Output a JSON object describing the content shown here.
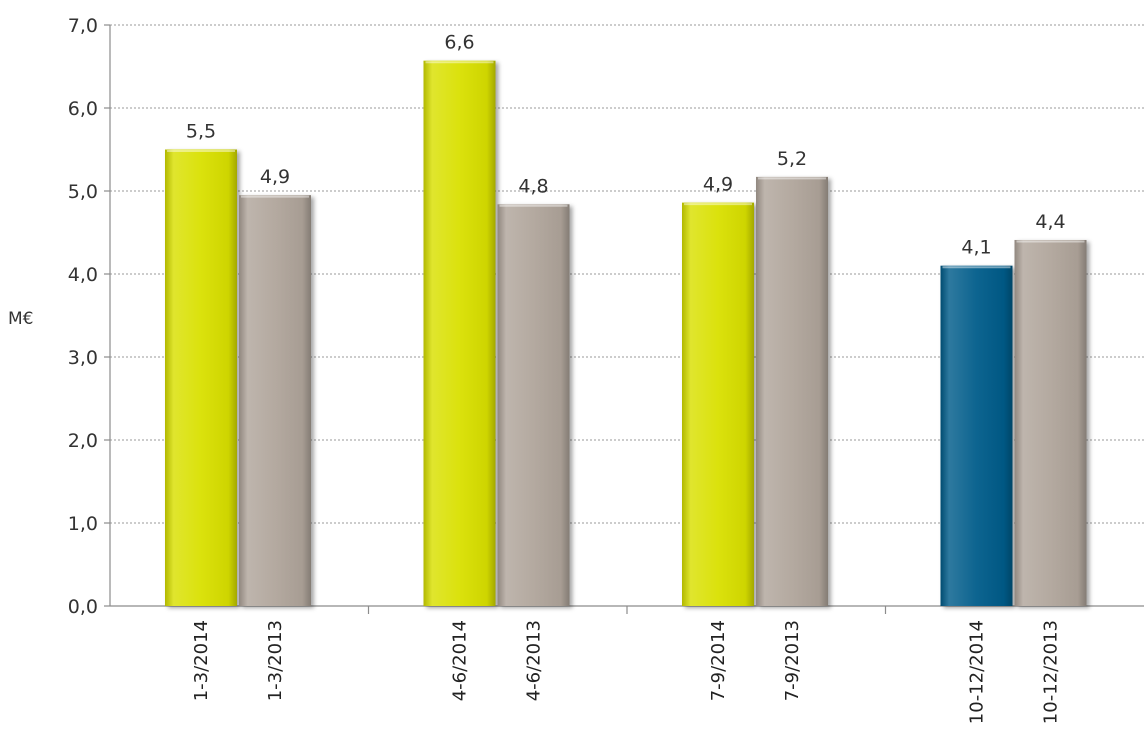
{
  "chart_data": {
    "type": "bar",
    "title": "",
    "xlabel": "",
    "ylabel": "M€",
    "ylim": [
      0,
      7
    ],
    "yticks": [
      "0,0",
      "1,0",
      "2,0",
      "3,0",
      "4,0",
      "5,0",
      "6,0",
      "7,0"
    ],
    "grid": true,
    "legend": "none",
    "groups": [
      {
        "bars": [
          {
            "category": "1-3/2014",
            "value": 5.5,
            "label": "5,5",
            "color": "#d9e000"
          },
          {
            "category": "1-3/2013",
            "value": 4.95,
            "label": "4,9",
            "color": "#b0a59b"
          }
        ]
      },
      {
        "bars": [
          {
            "category": "4-6/2014",
            "value": 6.57,
            "label": "6,6",
            "color": "#d9e000"
          },
          {
            "category": "4-6/2013",
            "value": 4.84,
            "label": "4,8",
            "color": "#b0a59b"
          }
        ]
      },
      {
        "bars": [
          {
            "category": "7-9/2014",
            "value": 4.86,
            "label": "4,9",
            "color": "#d9e000"
          },
          {
            "category": "7-9/2013",
            "value": 5.17,
            "label": "5,2",
            "color": "#b0a59b"
          }
        ]
      },
      {
        "bars": [
          {
            "category": "10-12/2014",
            "value": 4.1,
            "label": "4,1",
            "color": "#005b8a"
          },
          {
            "category": "10-12/2013",
            "value": 4.41,
            "label": "4,4",
            "color": "#b0a59b"
          }
        ]
      }
    ]
  }
}
